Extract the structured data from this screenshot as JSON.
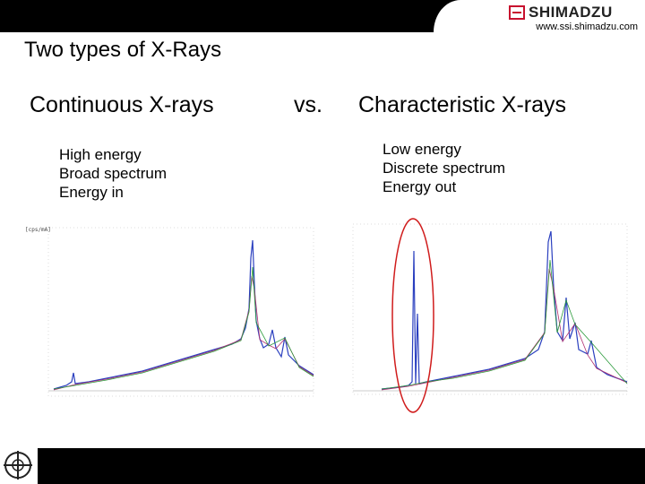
{
  "header": {
    "brand": "SHIMADZU",
    "url": "www.ssi.shimadzu.com"
  },
  "title": "Two types of X-Rays",
  "left": {
    "heading": "Continuous X-rays",
    "bullets": [
      "High energy",
      "Broad spectrum",
      "Energy in"
    ]
  },
  "vs": "vs.",
  "right": {
    "heading": "Characteristic X-rays",
    "bullets": [
      "Low energy",
      "Discrete spectrum",
      "Energy out"
    ]
  },
  "icons": {
    "logo": "shimadzu-logo-icon",
    "footer": "crosshair-globe-icon"
  },
  "colors": {
    "highlight_ellipse": "#d01c1c",
    "header": "#000000"
  }
}
